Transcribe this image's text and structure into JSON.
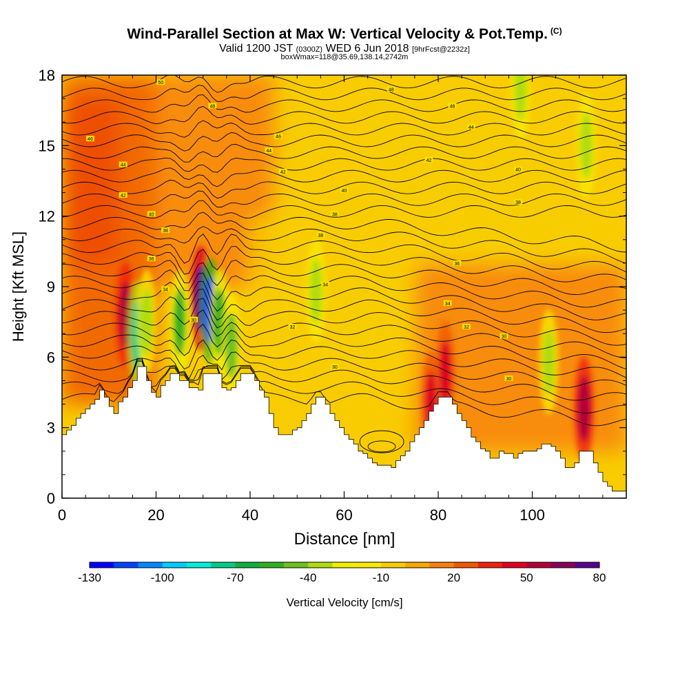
{
  "header": {
    "title": "Wind-Parallel Section at Max W: Vertical Velocity & Pot.Temp.",
    "copyright": "(C)",
    "valid_prefix": "Valid 1200 JST",
    "valid_utc": "(0300Z)",
    "valid_date": "WED 6 Jun 2018",
    "forecast": "[9hrFcst@2232z]",
    "box_info": "boxWmax=118@35.69,138.14,2742m"
  },
  "chart_data": {
    "type": "heatmap",
    "xlabel": "Distance [nm]",
    "ylabel": "Height [Kft MSL]",
    "xlim": [
      0,
      120
    ],
    "ylim": [
      0,
      18
    ],
    "x_ticks": [
      0,
      20,
      40,
      60,
      80,
      100
    ],
    "y_ticks": [
      0,
      3,
      6,
      9,
      12,
      15,
      18
    ],
    "colorbar": {
      "label": "Vertical Velocity [cm/s]",
      "min": -130,
      "max": 80,
      "step": 10,
      "tick_values": [
        -130,
        -100,
        -70,
        -40,
        -10,
        20,
        50,
        80
      ],
      "colors": [
        "#0000ff",
        "#0044ff",
        "#0088ff",
        "#00ccff",
        "#00eedd",
        "#00cc88",
        "#10b040",
        "#30b020",
        "#70c020",
        "#b0dc10",
        "#f0f000",
        "#f8ea00",
        "#f8cc00",
        "#f8a800",
        "#f88010",
        "#f05800",
        "#f02010",
        "#e00020",
        "#b0003a",
        "#880058",
        "#5a0090"
      ]
    },
    "terrain_kft": [
      [
        0,
        2.7
      ],
      [
        1,
        2.9
      ],
      [
        2,
        3.1
      ],
      [
        3,
        3.4
      ],
      [
        4,
        3.6
      ],
      [
        5,
        3.8
      ],
      [
        6,
        4.0
      ],
      [
        7,
        4.2
      ],
      [
        8,
        4.6
      ],
      [
        9,
        4.3
      ],
      [
        10,
        3.9
      ],
      [
        11,
        3.6
      ],
      [
        12,
        4.1
      ],
      [
        13,
        4.3
      ],
      [
        14,
        4.7
      ],
      [
        15,
        5.0
      ],
      [
        16,
        5.6
      ],
      [
        17,
        5.6
      ],
      [
        18,
        5.0
      ],
      [
        19,
        4.5
      ],
      [
        20,
        4.3
      ],
      [
        21,
        4.8
      ],
      [
        22,
        5.0
      ],
      [
        23,
        5.3
      ],
      [
        24,
        5.3
      ],
      [
        25,
        5.0
      ],
      [
        26,
        5.0
      ],
      [
        27,
        4.7
      ],
      [
        28,
        4.7
      ],
      [
        29,
        4.6
      ],
      [
        30,
        5.3
      ],
      [
        31,
        5.3
      ],
      [
        32,
        5.3
      ],
      [
        33,
        5.3
      ],
      [
        34,
        4.7
      ],
      [
        35,
        4.6
      ],
      [
        36,
        4.7
      ],
      [
        37,
        5.0
      ],
      [
        38,
        5.3
      ],
      [
        39,
        5.3
      ],
      [
        40,
        5.3
      ],
      [
        41,
        5.0
      ],
      [
        42,
        4.6
      ],
      [
        43,
        4.3
      ],
      [
        44,
        3.6
      ],
      [
        45,
        3.0
      ],
      [
        46,
        2.7
      ],
      [
        47,
        2.7
      ],
      [
        48,
        2.7
      ],
      [
        49,
        2.9
      ],
      [
        50,
        3.0
      ],
      [
        51,
        3.3
      ],
      [
        52,
        3.6
      ],
      [
        53,
        4.0
      ],
      [
        54,
        4.3
      ],
      [
        55,
        4.3
      ],
      [
        56,
        4.0
      ],
      [
        57,
        3.6
      ],
      [
        58,
        3.3
      ],
      [
        59,
        3.0
      ],
      [
        60,
        2.7
      ],
      [
        61,
        2.5
      ],
      [
        62,
        2.3
      ],
      [
        63,
        2.0
      ],
      [
        64,
        1.9
      ],
      [
        65,
        1.7
      ],
      [
        66,
        1.5
      ],
      [
        67,
        1.4
      ],
      [
        68,
        1.4
      ],
      [
        69,
        1.4
      ],
      [
        70,
        1.3
      ],
      [
        71,
        1.6
      ],
      [
        72,
        1.8
      ],
      [
        73,
        2.0
      ],
      [
        74,
        2.4
      ],
      [
        75,
        2.7
      ],
      [
        76,
        3.0
      ],
      [
        77,
        3.3
      ],
      [
        78,
        3.7
      ],
      [
        79,
        4.0
      ],
      [
        80,
        4.3
      ],
      [
        81,
        4.3
      ],
      [
        82,
        4.3
      ],
      [
        83,
        4.0
      ],
      [
        84,
        3.6
      ],
      [
        85,
        3.3
      ],
      [
        86,
        3.0
      ],
      [
        87,
        2.6
      ],
      [
        88,
        2.4
      ],
      [
        89,
        2.1
      ],
      [
        90,
        2.0
      ],
      [
        91,
        1.7
      ],
      [
        92,
        1.7
      ],
      [
        93,
        2.0
      ],
      [
        94,
        1.9
      ],
      [
        95,
        1.9
      ],
      [
        96,
        1.7
      ],
      [
        97,
        1.9
      ],
      [
        98,
        2.0
      ],
      [
        99,
        2.0
      ],
      [
        100,
        2.0
      ],
      [
        101,
        2.1
      ],
      [
        102,
        2.3
      ],
      [
        103,
        2.3
      ],
      [
        104,
        2.2
      ],
      [
        105,
        2.0
      ],
      [
        106,
        1.7
      ],
      [
        107,
        1.3
      ],
      [
        108,
        1.3
      ],
      [
        109,
        1.5
      ],
      [
        110,
        2.0
      ],
      [
        111,
        2.0
      ],
      [
        112,
        2.0
      ],
      [
        113,
        1.5
      ],
      [
        114,
        1.1
      ],
      [
        115,
        0.7
      ],
      [
        116,
        0.5
      ],
      [
        117,
        0.3
      ],
      [
        118,
        0.3
      ],
      [
        119,
        0.3
      ]
    ],
    "background_w_cm_s": [
      {
        "x": [
          0,
          12
        ],
        "y": [
          10,
          17
        ],
        "w": 40
      },
      {
        "x": [
          0,
          20
        ],
        "y": [
          4,
          18
        ],
        "w": 20
      },
      {
        "x": [
          20,
          45
        ],
        "y": [
          9,
          18
        ],
        "w": 10
      },
      {
        "x": [
          40,
          75
        ],
        "y": [
          5,
          12
        ],
        "w": -10
      },
      {
        "x": [
          60,
          120
        ],
        "y": [
          10,
          18
        ],
        "w": -10
      },
      {
        "x": [
          75,
          120
        ],
        "y": [
          2,
          10
        ],
        "w": 10
      }
    ],
    "updraft_downdraft_features": [
      {
        "x": 13.5,
        "y": 7.8,
        "w": 50
      },
      {
        "x": 16.0,
        "y": 7.0,
        "w": -80
      },
      {
        "x": 18.0,
        "y": 7.5,
        "w": -40
      },
      {
        "x": 25.0,
        "y": 7.5,
        "w": -60
      },
      {
        "x": 29.5,
        "y": 8.5,
        "w": 70
      },
      {
        "x": 31.5,
        "y": 8.0,
        "w": -120
      },
      {
        "x": 33.5,
        "y": 7.5,
        "w": -60
      },
      {
        "x": 36.0,
        "y": 6.5,
        "w": -50
      },
      {
        "x": 54.0,
        "y": 8.8,
        "w": -40
      },
      {
        "x": 78.5,
        "y": 4.0,
        "w": 40
      },
      {
        "x": 81.5,
        "y": 5.3,
        "w": 40
      },
      {
        "x": 97.5,
        "y": 17.5,
        "w": -40
      },
      {
        "x": 103.5,
        "y": 5.8,
        "w": -40
      },
      {
        "x": 111.0,
        "y": 3.8,
        "w": 50
      },
      {
        "x": 111.5,
        "y": 15.0,
        "w": -40
      }
    ],
    "theta_contour_labels": [
      {
        "x": 21,
        "y": 17.7,
        "text": "50"
      },
      {
        "x": 32,
        "y": 16.7,
        "text": "48"
      },
      {
        "x": 6,
        "y": 15.3,
        "text": "46"
      },
      {
        "x": 46,
        "y": 15.4,
        "text": "46"
      },
      {
        "x": 44,
        "y": 14.8,
        "text": "44"
      },
      {
        "x": 13,
        "y": 14.2,
        "text": "44"
      },
      {
        "x": 47,
        "y": 13.9,
        "text": "42"
      },
      {
        "x": 13,
        "y": 12.9,
        "text": "42"
      },
      {
        "x": 19,
        "y": 12.1,
        "text": "40"
      },
      {
        "x": 60,
        "y": 13.1,
        "text": "40"
      },
      {
        "x": 58,
        "y": 12.1,
        "text": "38"
      },
      {
        "x": 22,
        "y": 11.4,
        "text": "38"
      },
      {
        "x": 55,
        "y": 11.2,
        "text": "38"
      },
      {
        "x": 19,
        "y": 10.2,
        "text": "36"
      },
      {
        "x": 22,
        "y": 8.9,
        "text": "34"
      },
      {
        "x": 56,
        "y": 9.1,
        "text": "34"
      },
      {
        "x": 49,
        "y": 7.3,
        "text": "32"
      },
      {
        "x": 58,
        "y": 5.6,
        "text": "30"
      },
      {
        "x": 70,
        "y": 17.4,
        "text": "48"
      },
      {
        "x": 83,
        "y": 16.7,
        "text": "46"
      },
      {
        "x": 87,
        "y": 15.8,
        "text": "44"
      },
      {
        "x": 78,
        "y": 14.4,
        "text": "42"
      },
      {
        "x": 97,
        "y": 14.0,
        "text": "40"
      },
      {
        "x": 97,
        "y": 12.6,
        "text": "38"
      },
      {
        "x": 84,
        "y": 10.0,
        "text": "36"
      },
      {
        "x": 82,
        "y": 8.3,
        "text": "34"
      },
      {
        "x": 86,
        "y": 7.3,
        "text": "32"
      },
      {
        "x": 94,
        "y": 6.9,
        "text": "30"
      },
      {
        "x": 95,
        "y": 5.1,
        "text": "30"
      },
      {
        "x": 28,
        "y": 7.6,
        "text": "30"
      }
    ]
  }
}
